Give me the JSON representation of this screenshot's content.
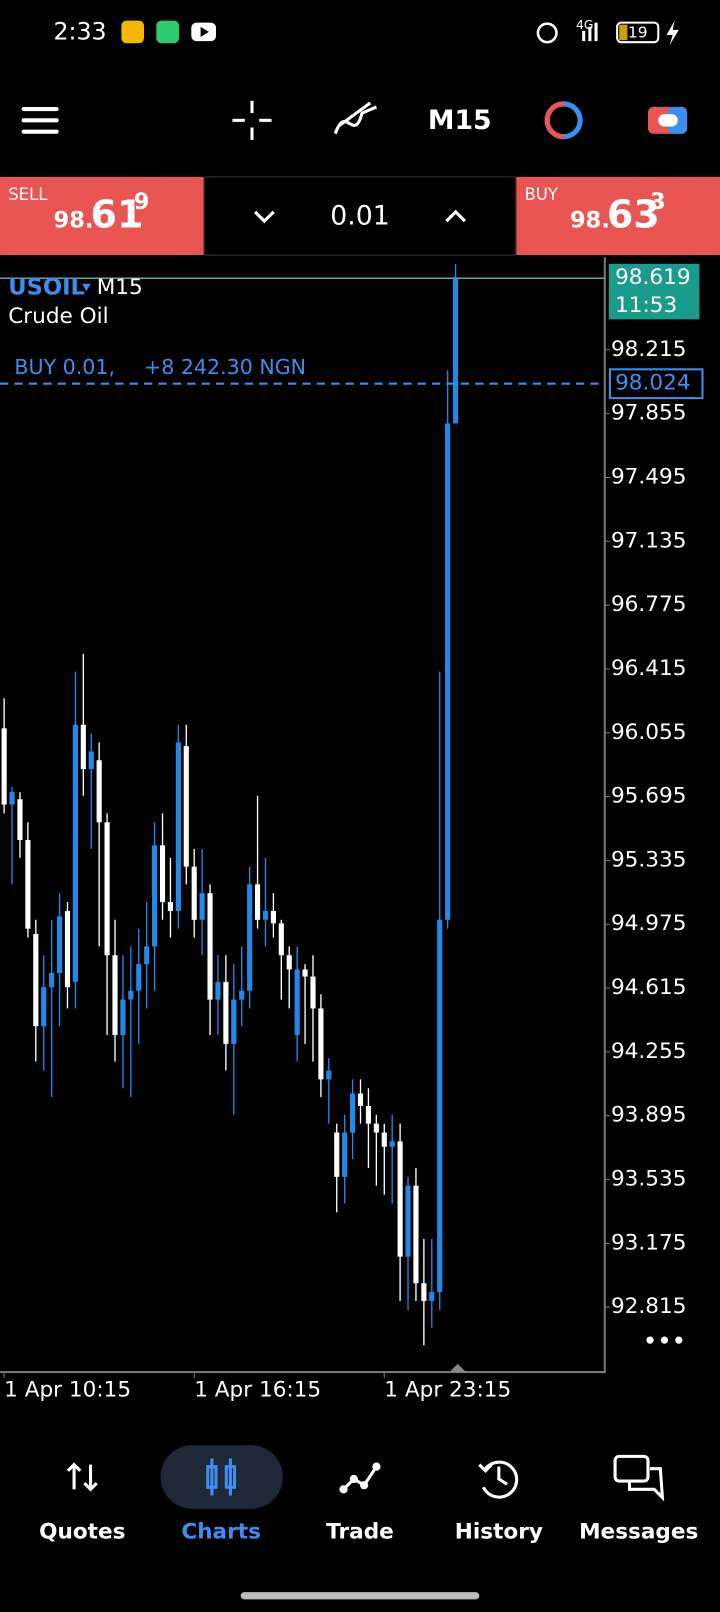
{
  "status_bar": {
    "time": "2:33",
    "network": "4G",
    "battery": "19"
  },
  "toolbar": {
    "timeframe": "M15"
  },
  "trade_panel": {
    "sell": {
      "label": "SELL",
      "price_prefix": "98.",
      "price_big": "61",
      "price_sup": "9"
    },
    "lot": "0.01",
    "buy": {
      "label": "BUY",
      "price_prefix": "98.",
      "price_big": "63",
      "price_sup": "3"
    }
  },
  "chart_data": {
    "type": "candlestick",
    "symbol": "USOIL",
    "timeframe": "M15",
    "description": "Crude Oil",
    "position_label": "BUY 0.01,",
    "position_profit": "+8 242.30 NGN",
    "position_price": 98.024,
    "current_price": 98.619,
    "countdown": "11:53",
    "up_color": "#2389e8",
    "down_color": "#ffffff",
    "grid": false,
    "ylim": [
      92.449,
      98.738
    ],
    "yticks": [
      98.215,
      97.855,
      97.495,
      97.135,
      96.775,
      96.415,
      96.055,
      95.695,
      95.335,
      94.975,
      94.615,
      94.255,
      93.895,
      93.535,
      93.175,
      92.815
    ],
    "categories": [
      "1 Apr 10:15",
      null,
      null,
      null,
      null,
      null,
      null,
      null,
      null,
      null,
      null,
      null,
      null,
      null,
      null,
      null,
      null,
      null,
      null,
      null,
      null,
      null,
      null,
      null,
      "1 Apr 16:15",
      null,
      null,
      null,
      null,
      null,
      null,
      null,
      null,
      null,
      null,
      null,
      null,
      null,
      null,
      null,
      null,
      null,
      null,
      null,
      null,
      null,
      null,
      null,
      "1 Apr 23:15",
      null,
      null,
      null,
      null,
      null,
      null,
      null,
      null,
      null
    ],
    "open": [
      96.08,
      95.65,
      95.68,
      95.45,
      94.92,
      94.4,
      94.62,
      94.7,
      95.05,
      94.65,
      96.1,
      95.85,
      95.9,
      95.55,
      94.8,
      94.35,
      94.55,
      94.6,
      94.75,
      94.85,
      95.42,
      95.1,
      95.05,
      95.98,
      95.3,
      95.0,
      95.15,
      94.55,
      94.65,
      94.3,
      94.55,
      94.6,
      95.2,
      95.0,
      95.05,
      94.98,
      94.8,
      94.35,
      94.72,
      94.68,
      94.5,
      94.1,
      93.8,
      93.55,
      93.8,
      94.02,
      93.95,
      93.85,
      93.8,
      93.72,
      93.75,
      93.1,
      93.5,
      92.95,
      92.85,
      92.9,
      95.0,
      97.8
    ],
    "high": [
      96.25,
      95.75,
      95.72,
      95.55,
      95.0,
      94.8,
      95.0,
      95.15,
      95.1,
      96.4,
      96.5,
      96.05,
      96.0,
      95.6,
      95.0,
      94.8,
      94.85,
      94.95,
      95.1,
      95.55,
      95.6,
      95.35,
      96.1,
      96.1,
      95.4,
      95.4,
      95.2,
      94.8,
      94.8,
      94.75,
      94.85,
      95.3,
      95.7,
      95.35,
      95.15,
      95.0,
      94.85,
      94.85,
      94.75,
      94.8,
      94.58,
      94.22,
      93.85,
      93.9,
      94.1,
      94.1,
      94.05,
      93.9,
      93.85,
      93.9,
      93.85,
      93.55,
      93.6,
      93.2,
      93.2,
      96.4,
      98.1,
      98.7
    ],
    "low": [
      95.6,
      95.2,
      95.35,
      94.9,
      94.2,
      94.15,
      94.0,
      94.4,
      94.5,
      94.5,
      95.7,
      95.4,
      94.85,
      94.35,
      94.2,
      94.05,
      94.0,
      94.3,
      94.5,
      94.6,
      95.0,
      94.9,
      94.95,
      95.2,
      94.9,
      94.8,
      94.35,
      94.35,
      94.15,
      93.9,
      94.4,
      94.5,
      94.95,
      94.85,
      94.9,
      94.55,
      94.5,
      94.2,
      94.3,
      94.2,
      94.0,
      93.85,
      93.35,
      93.4,
      93.65,
      93.85,
      93.6,
      93.5,
      93.45,
      93.4,
      92.85,
      92.8,
      92.85,
      92.6,
      92.7,
      92.8,
      94.95,
      97.8
    ],
    "close": [
      95.65,
      95.72,
      95.45,
      94.95,
      94.4,
      94.62,
      94.7,
      95.02,
      94.62,
      96.1,
      95.85,
      95.95,
      95.55,
      94.8,
      94.35,
      94.55,
      94.6,
      94.75,
      94.85,
      95.42,
      95.1,
      95.05,
      96.0,
      95.3,
      95.0,
      95.15,
      94.55,
      94.65,
      94.3,
      94.55,
      94.6,
      95.2,
      95.0,
      95.05,
      94.98,
      94.8,
      94.72,
      94.72,
      94.68,
      94.5,
      94.1,
      94.15,
      93.55,
      93.8,
      94.02,
      93.95,
      93.85,
      93.8,
      93.72,
      93.75,
      93.1,
      93.5,
      92.95,
      92.85,
      92.9,
      95.0,
      97.8,
      98.62
    ]
  },
  "nav": {
    "items": [
      "Quotes",
      "Charts",
      "Trade",
      "History",
      "Messages"
    ],
    "active": 1
  }
}
